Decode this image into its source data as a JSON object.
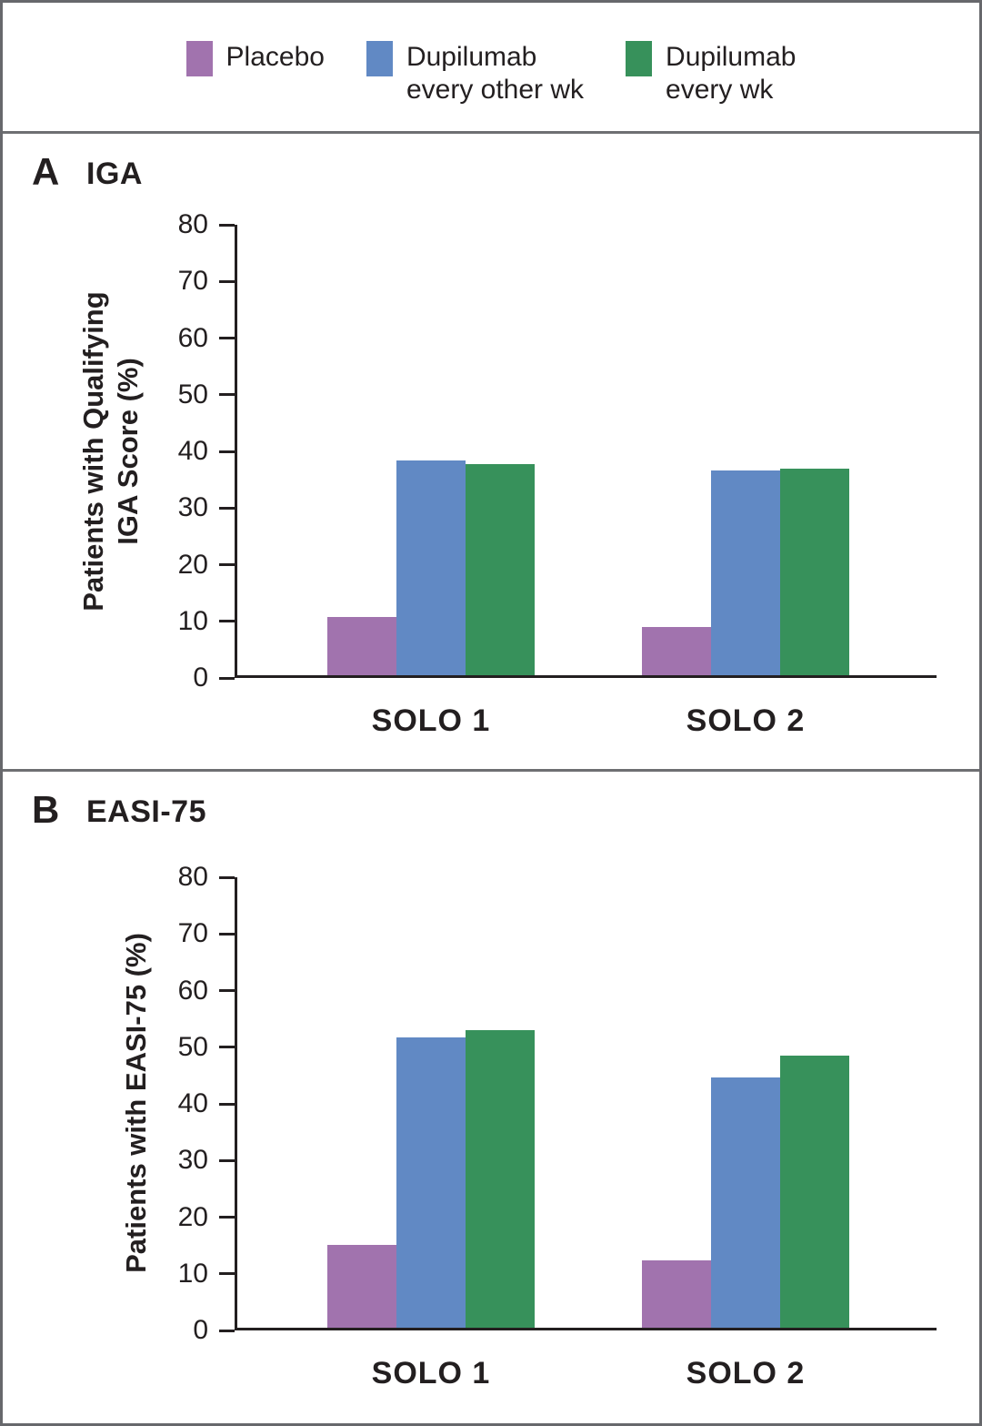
{
  "figure": {
    "text_color": "#231F20",
    "frame_color": "#67686C",
    "divider_color": "#6E6F72",
    "background": "#FFFFFF"
  },
  "legend": {
    "items": [
      {
        "id": "placebo",
        "color": "#A173AE",
        "lines": [
          "Placebo"
        ]
      },
      {
        "id": "dupilumab-every-other-wk",
        "color": "#6189C4",
        "lines": [
          "Dupilumab",
          "every other wk"
        ]
      },
      {
        "id": "dupilumab-every-wk",
        "color": "#37915B",
        "lines": [
          "Dupilumab",
          "every wk"
        ]
      }
    ]
  },
  "chart_data": [
    {
      "type": "bar",
      "panel": "A",
      "panel_title": "IGA",
      "ylabel_lines": [
        "Patients with Qualifying",
        "IGA Score (%)"
      ],
      "categories": [
        "SOLO 1",
        "SOLO 2"
      ],
      "series": [
        {
          "name": "Placebo",
          "color": "#A173AE",
          "values": [
            10.3,
            8.5
          ]
        },
        {
          "name": "Dupilumab every other wk",
          "color": "#6189C4",
          "values": [
            37.9,
            36.1
          ]
        },
        {
          "name": "Dupilumab every wk",
          "color": "#37915B",
          "values": [
            37.2,
            36.4
          ]
        }
      ],
      "ylim": [
        0,
        80
      ],
      "ytick_step": 10,
      "ytick_labels": [
        "0",
        "10",
        "20",
        "30",
        "40",
        "50",
        "60",
        "70",
        "80"
      ],
      "grid": false,
      "legend_position": "top-shared"
    },
    {
      "type": "bar",
      "panel": "B",
      "panel_title": "EASI-75",
      "ylabel_lines": [
        "Patients with EASI-75 (%)"
      ],
      "categories": [
        "SOLO 1",
        "SOLO 2"
      ],
      "series": [
        {
          "name": "Placebo",
          "color": "#A173AE",
          "values": [
            14.7,
            11.9
          ]
        },
        {
          "name": "Dupilumab every other wk",
          "color": "#6189C4",
          "values": [
            51.3,
            44.2
          ]
        },
        {
          "name": "Dupilumab every wk",
          "color": "#37915B",
          "values": [
            52.5,
            48.1
          ]
        }
      ],
      "ylim": [
        0,
        80
      ],
      "ytick_step": 10,
      "ytick_labels": [
        "0",
        "10",
        "20",
        "30",
        "40",
        "50",
        "60",
        "70",
        "80"
      ],
      "grid": false,
      "legend_position": "top-shared"
    }
  ]
}
